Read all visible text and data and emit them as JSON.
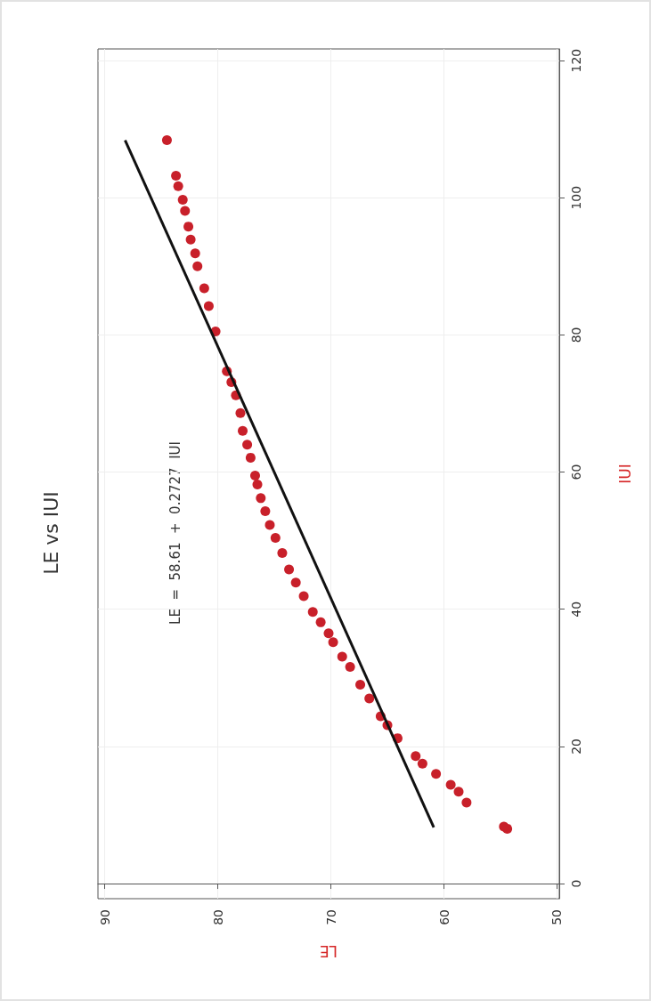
{
  "chart_data": {
    "type": "scatter",
    "title": "LE vs IUI",
    "xlabel": "LE",
    "ylabel": "IUI",
    "annotations": [
      "LE  =  58.61  +  0.2727  IUI"
    ],
    "xlim": [
      90.6,
      49.8
    ],
    "xticks": [
      90,
      80,
      70,
      60,
      50
    ],
    "ylim": [
      -2.2,
      121.7
    ],
    "yticks": [
      0,
      20,
      40,
      60,
      80,
      100,
      120
    ],
    "grid": true,
    "marker": "circle",
    "series": [
      {
        "color": "#c8202a",
        "x": [
          54.4,
          54.7,
          58.0,
          58.7,
          59.4,
          60.7,
          61.9,
          62.5,
          64.1,
          65.0,
          65.6,
          66.6,
          67.4,
          68.3,
          69.0,
          69.8,
          70.2,
          70.9,
          71.6,
          72.4,
          73.1,
          73.7,
          74.3,
          74.9,
          75.4,
          75.8,
          76.2,
          76.5,
          76.7,
          77.1,
          77.4,
          77.8,
          78.0,
          78.4,
          78.8,
          79.2,
          80.2,
          80.8,
          81.2,
          81.8,
          82.0,
          82.4,
          82.6,
          82.9,
          83.1,
          83.5,
          83.7,
          84.5
        ],
        "values": [
          8.0,
          8.3,
          11.8,
          13.4,
          14.4,
          16.0,
          17.5,
          18.6,
          21.2,
          23.1,
          24.4,
          27.0,
          29.0,
          31.6,
          33.1,
          35.2,
          36.5,
          38.1,
          39.6,
          41.9,
          43.9,
          45.8,
          48.2,
          50.4,
          52.3,
          54.3,
          56.2,
          58.2,
          59.5,
          62.1,
          64.0,
          66.0,
          68.6,
          71.2,
          73.1,
          74.7,
          80.5,
          84.2,
          86.8,
          90.0,
          91.9,
          93.9,
          95.8,
          98.1,
          99.7,
          101.7,
          103.2,
          108.4
        ]
      },
      {
        "type": "line",
        "color": "#111111",
        "marker": "none",
        "x": [
          60.9,
          88.2
        ],
        "values": [
          8.2,
          108.4
        ]
      }
    ]
  }
}
